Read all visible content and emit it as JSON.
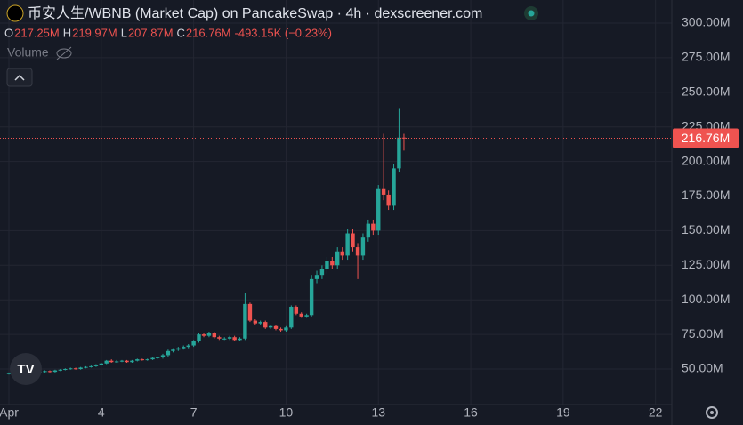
{
  "header": {
    "title": "币安人生/WBNB (Market Cap) on PancakeSwap · 4h · dexscreener.com",
    "ohlc": [
      {
        "key": "O",
        "value": "217.25M"
      },
      {
        "key": "H",
        "value": "219.97M"
      },
      {
        "key": "L",
        "value": "207.87M"
      },
      {
        "key": "C",
        "value": "216.76M"
      }
    ],
    "change": "-493.15K (−0.23%)",
    "volume": "Volume"
  },
  "chart_data": {
    "type": "candlestick",
    "up_color": "#26a69a",
    "down_color": "#ef5350",
    "grid": true,
    "xlim": [
      0.711,
      22.53
    ],
    "ylim": [
      24.3,
      316.7
    ],
    "xticks": [
      {
        "value": 1,
        "label": "Apr"
      },
      4,
      7,
      10,
      13,
      16,
      19,
      22
    ],
    "yticks": [
      {
        "value": 50,
        "label": "50.00M"
      },
      {
        "value": 75,
        "label": "75.00M"
      },
      {
        "value": 100,
        "label": "100.00M"
      },
      {
        "value": 125,
        "label": "125.00M"
      },
      {
        "value": 150,
        "label": "150.00M"
      },
      {
        "value": 175,
        "label": "175.00M"
      },
      {
        "value": 200,
        "label": "200.00M"
      },
      {
        "value": 225,
        "label": "225.00M"
      },
      {
        "value": 250,
        "label": "250.00M"
      },
      {
        "value": 275,
        "label": "275.00M"
      },
      {
        "value": 300,
        "label": "300.00M"
      }
    ],
    "price_line": {
      "value": 216.76,
      "label": "216.76M"
    },
    "x": [
      1.0,
      1.17,
      1.33,
      1.5,
      1.67,
      1.83,
      2.0,
      2.17,
      2.33,
      2.5,
      2.67,
      2.83,
      3.0,
      3.17,
      3.33,
      3.5,
      3.67,
      3.83,
      4.0,
      4.17,
      4.33,
      4.5,
      4.67,
      4.83,
      5.0,
      5.17,
      5.33,
      5.5,
      5.67,
      5.83,
      6.0,
      6.17,
      6.33,
      6.5,
      6.67,
      6.83,
      7.0,
      7.17,
      7.33,
      7.5,
      7.67,
      7.83,
      8.0,
      8.17,
      8.33,
      8.5,
      8.67,
      8.83,
      9.0,
      9.17,
      9.33,
      9.5,
      9.67,
      9.83,
      10.0,
      10.17,
      10.33,
      10.5,
      10.67,
      10.83,
      11.0,
      11.17,
      11.33,
      11.5,
      11.67,
      11.83,
      12.0,
      12.17,
      12.33,
      12.5,
      12.67,
      12.83,
      13.0,
      13.17,
      13.33,
      13.5,
      13.67,
      13.83
    ],
    "open": [
      46.5,
      47,
      47.5,
      47,
      47.5,
      48,
      47.5,
      48,
      48.5,
      48,
      49,
      49.5,
      50,
      50.5,
      50,
      51,
      51.5,
      52,
      53,
      54,
      56,
      55,
      55.5,
      56,
      55,
      56,
      57,
      56.5,
      57,
      58,
      58.5,
      60,
      63,
      64,
      65,
      66,
      67,
      70,
      75,
      74,
      76,
      73,
      72,
      72,
      73,
      71,
      72,
      97,
      85,
      83,
      84,
      80,
      81,
      79,
      78,
      80,
      95,
      90,
      88,
      89,
      115,
      118,
      122,
      128,
      125,
      135,
      132,
      148,
      138,
      132,
      145,
      155,
      150,
      180,
      176,
      168,
      195,
      217.25
    ],
    "high": [
      47.5,
      48,
      48,
      48,
      48.5,
      48.5,
      48.5,
      49,
      49,
      49.5,
      50,
      50.5,
      51,
      51,
      51.5,
      52,
      52.5,
      53.5,
      54.5,
      56.5,
      57,
      56.5,
      56.5,
      56.5,
      56.5,
      57.5,
      57.5,
      57.5,
      58.5,
      59,
      61,
      64,
      65,
      66,
      67,
      68,
      71,
      76,
      76,
      77,
      77,
      74,
      73,
      74,
      74,
      73,
      105,
      98,
      86,
      85,
      85,
      82,
      82,
      80,
      81,
      96,
      96,
      91,
      90,
      118,
      121,
      125,
      131,
      131,
      138,
      138,
      151,
      151,
      141,
      148,
      158,
      158,
      183,
      220,
      179,
      198,
      238,
      219.97
    ],
    "low": [
      46,
      46.5,
      46.5,
      46.5,
      47,
      47,
      47,
      47.5,
      47.5,
      47.5,
      48.5,
      49,
      49.5,
      49.5,
      49.5,
      50.5,
      51,
      51.5,
      52.5,
      53.5,
      54.5,
      54.5,
      55,
      54.5,
      54.5,
      55.5,
      56,
      56,
      56.5,
      57.5,
      57.5,
      59,
      62,
      63,
      64,
      65,
      66,
      69,
      73,
      73,
      72,
      71,
      71,
      71,
      70,
      70,
      71,
      84,
      82,
      82,
      79,
      79,
      78,
      77,
      77,
      79,
      89,
      87,
      87,
      88,
      112,
      115,
      119,
      122,
      122,
      129,
      129,
      135,
      115,
      129,
      142,
      147,
      147,
      172,
      165,
      165,
      192,
      207.87
    ],
    "close": [
      47,
      47.5,
      47,
      47.5,
      48,
      47.5,
      48,
      48.5,
      48,
      49,
      49.5,
      50,
      50.5,
      50,
      51,
      51.5,
      52,
      53,
      54,
      56,
      55,
      55.5,
      56,
      55,
      56,
      57,
      56.5,
      57,
      58,
      58.5,
      60,
      63,
      64,
      65,
      66,
      67,
      70,
      75,
      74,
      76,
      73,
      72,
      72,
      73,
      71,
      72,
      97,
      85,
      83,
      84,
      80,
      81,
      79,
      78,
      80,
      95,
      90,
      88,
      89,
      115,
      118,
      122,
      128,
      125,
      135,
      132,
      148,
      138,
      132,
      145,
      155,
      150,
      180,
      176,
      168,
      195,
      217.25,
      216.76
    ]
  }
}
